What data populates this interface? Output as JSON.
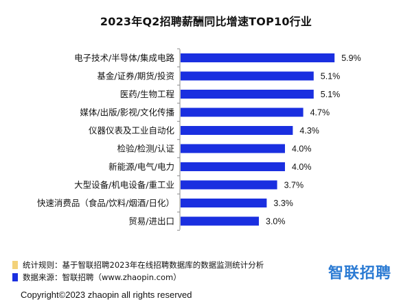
{
  "title": "2023年Q2招聘薪酬同比增速TOP10行业",
  "colors": {
    "bar": "#1a2fe0",
    "note1_swatch": "#f3d27a",
    "note2_swatch": "#1a2fe0",
    "logo": "#2a7ad3"
  },
  "chart_data": {
    "type": "bar",
    "orientation": "horizontal",
    "categories": [
      "电子技术/半导体/集成电路",
      "基金/证券/期货/投资",
      "医药/生物工程",
      "媒体/出版/影视/文化传播",
      "仪器仪表及工业自动化",
      "检验/检测/认证",
      "新能源/电气/电力",
      "大型设备/机电设备/重工业",
      "快速消费品（食品/饮料/烟酒/日化）",
      "贸易/进出口"
    ],
    "values": [
      5.9,
      5.1,
      5.1,
      4.7,
      4.3,
      4.0,
      4.0,
      3.7,
      3.3,
      3.0
    ],
    "data_labels": [
      "5.9%",
      "5.1%",
      "5.1%",
      "4.7%",
      "4.3%",
      "4.0%",
      "4.0%",
      "3.7%",
      "3.3%",
      "3.0%"
    ],
    "xlim": [
      0,
      6.5
    ],
    "grid": false
  },
  "footer": {
    "note1": "统计规则：基于智联招聘2023年在线招聘数据库的数据监测统计分析",
    "note2": "数据来源：智联招聘（www.zhaopin.com）"
  },
  "logo_text": "智联招聘",
  "copyright": "Copyright©2023 zhaopin all rights reserved"
}
